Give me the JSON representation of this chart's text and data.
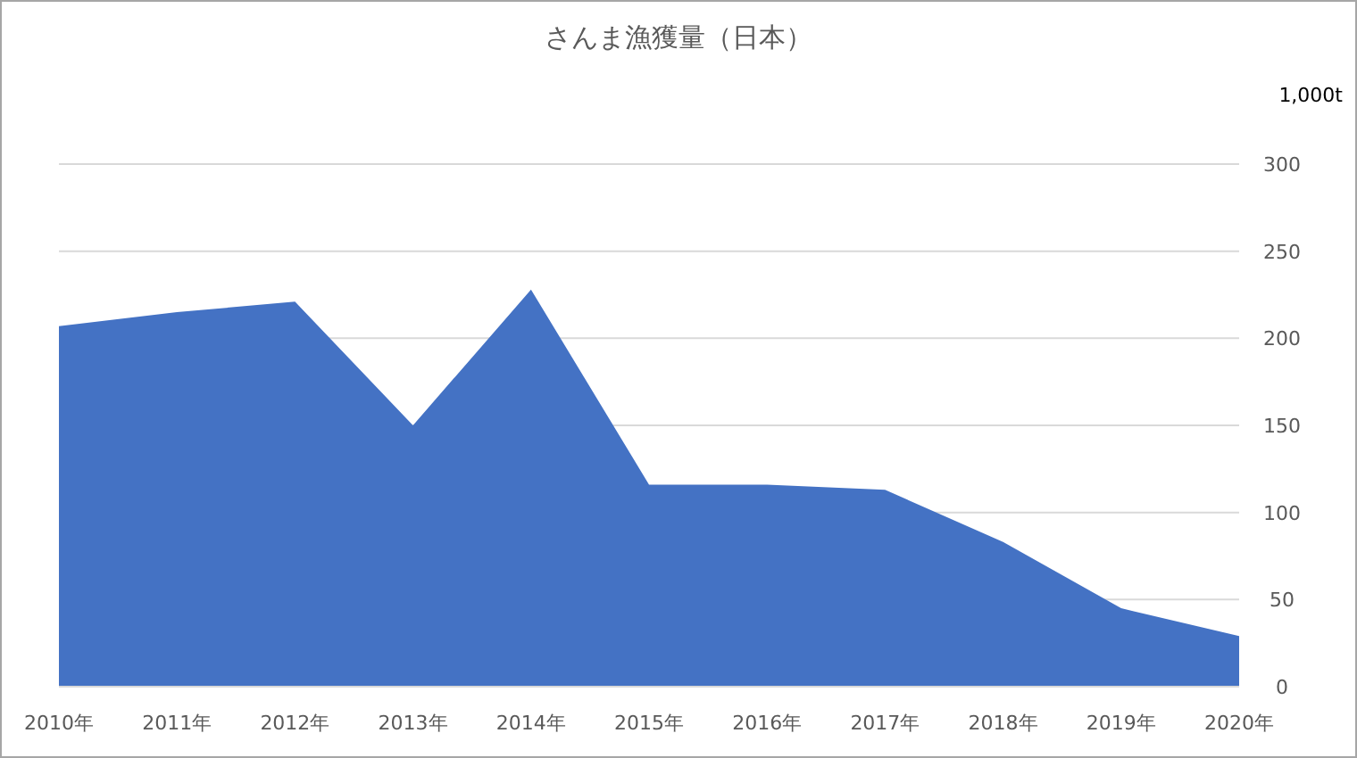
{
  "chart_data": {
    "type": "area",
    "title": "さんま漁獲量（日本）",
    "ylabel": "1,000t",
    "categories": [
      "2010年",
      "2011年",
      "2012年",
      "2013年",
      "2014年",
      "2015年",
      "2016年",
      "2017年",
      "2018年",
      "2019年",
      "2020年"
    ],
    "series": [
      {
        "color": "#4472c4",
        "values": [
          207,
          215,
          221,
          150,
          228,
          116,
          116,
          113,
          83,
          45,
          29
        ]
      }
    ],
    "ylim": [
      0,
      300
    ],
    "yticks": [
      0,
      50,
      100,
      150,
      200,
      250,
      300
    ],
    "grid": "y"
  }
}
